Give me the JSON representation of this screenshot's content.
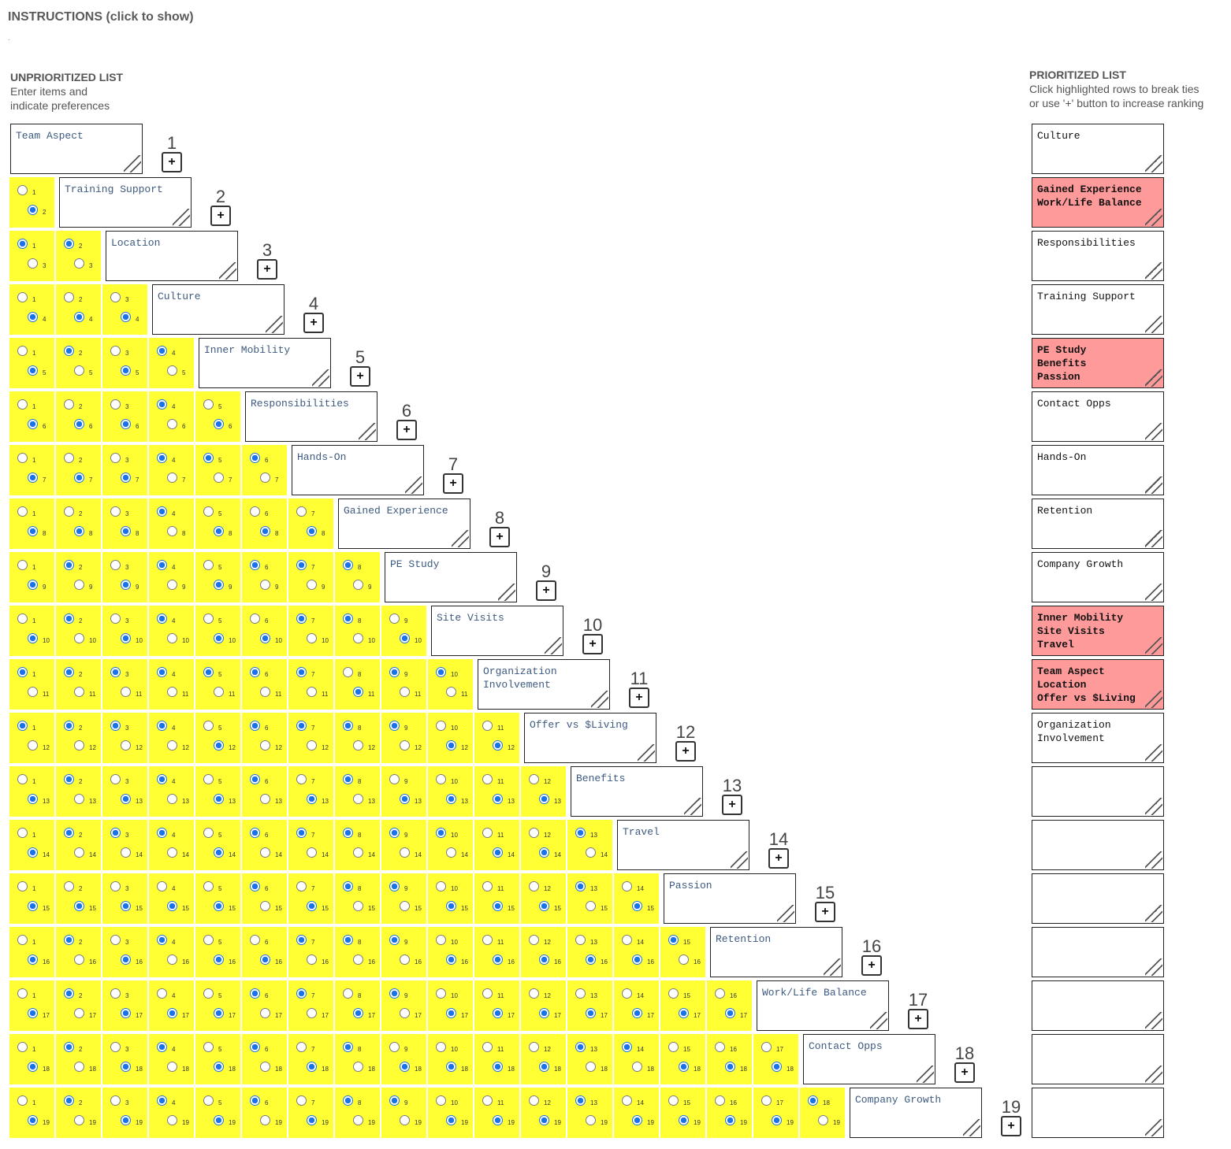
{
  "instructions_toggle": "INSTRUCTIONS (click to show)",
  "stray_mark": ".",
  "unprioritized": {
    "heading": "UNPRIORITIZED LIST",
    "subline1": "Enter items and",
    "subline2": "indicate preferences",
    "items": [
      "Team Aspect",
      "Training Support",
      "Location",
      "Culture",
      "Inner Mobility",
      "Responsibilities",
      "Hands-On",
      "Gained Experience",
      "PE Study",
      "Site Visits",
      "Organization\nInvolvement",
      "Offer vs $Living",
      "Benefits",
      "Travel",
      "Passion",
      "Retention",
      "Work/Life Balance",
      "Contact Opps",
      "Company Growth"
    ],
    "rank_numbers": [
      "1",
      "2",
      "3",
      "4",
      "5",
      "6",
      "7",
      "8",
      "9",
      "10",
      "11",
      "12",
      "13",
      "14",
      "15",
      "16",
      "17",
      "18",
      "19"
    ],
    "plus_label": "+"
  },
  "prioritized": {
    "heading": "PRIORITIZED LIST",
    "subline1": "Click highlighted rows to break ties",
    "subline2": "or use '+' button to increase ranking",
    "slots": [
      {
        "text": "Culture",
        "tie": false
      },
      {
        "text": "Gained Experience\nWork/Life Balance",
        "tie": true
      },
      {
        "text": "Responsibilities",
        "tie": false
      },
      {
        "text": "Training Support",
        "tie": false
      },
      {
        "text": "PE Study\nBenefits\nPassion",
        "tie": true
      },
      {
        "text": "Contact Opps",
        "tie": false
      },
      {
        "text": "Hands-On",
        "tie": false
      },
      {
        "text": "Retention",
        "tie": false
      },
      {
        "text": "Company Growth",
        "tie": false
      },
      {
        "text": "Inner Mobility\nSite Visits\nTravel",
        "tie": true
      },
      {
        "text": "Team Aspect\nLocation\nOffer vs $Living",
        "tie": true
      },
      {
        "text": "Organization Involvement",
        "tie": false
      },
      {
        "text": "",
        "tie": false
      },
      {
        "text": "",
        "tie": false
      },
      {
        "text": "",
        "tie": false
      },
      {
        "text": "",
        "tie": false
      },
      {
        "text": "",
        "tie": false
      },
      {
        "text": "",
        "tie": false
      },
      {
        "text": "",
        "tie": false
      }
    ]
  },
  "comparisons": [
    "B",
    "TTB",
    "BBB",
    "BTBT",
    "BBBTB",
    "BBBTTT",
    "BBBTBBB",
    "BTBTBTTT",
    "BTBTBBTTB",
    "TTTTTTTBTT",
    "TTTTBTTTTBB",
    "BTBTBTBTBBBB",
    "BTTTBTTTTTBBT",
    "BBBBBTBTTBBBTB",
    "BTBTBBTTTBBBBBT",
    "BTBBBTTBTBBBBBBB",
    "BTBTBTBTBBBBTTBBB",
    "BTBTBTBTTBBBTBBBBT"
  ],
  "colors": {
    "pair_cell": "#ffff33",
    "tie_highlight": "#ff9a9a",
    "radio_selected": "#1a73e8",
    "item_text": "#3d5a80"
  }
}
